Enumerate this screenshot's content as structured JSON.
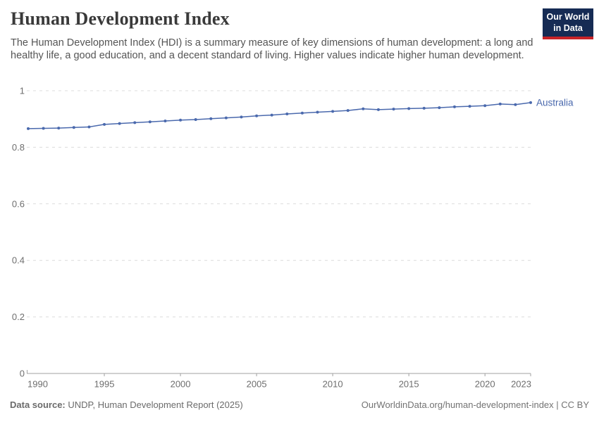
{
  "header": {
    "title": "Human Development Index",
    "subtitle": "The Human Development Index (HDI) is a summary measure of key dimensions of human development: a long and healthy life, a good education, and a decent standard of living. Higher values indicate higher human development.",
    "logo": {
      "line1": "Our World",
      "line2": "in Data"
    }
  },
  "colors": {
    "line": "#4a69ad",
    "logo_navy": "#162b54",
    "logo_red": "#c82328",
    "gridline": "#dcdcdc",
    "axis": "#a0a0a0",
    "tick_text": "#6e6e6e"
  },
  "chart_data": {
    "type": "line",
    "title": "Human Development Index",
    "entity": "Australia",
    "x": [
      1990,
      1991,
      1992,
      1993,
      1994,
      1995,
      1996,
      1997,
      1998,
      1999,
      2000,
      2001,
      2002,
      2003,
      2004,
      2005,
      2006,
      2007,
      2008,
      2009,
      2010,
      2011,
      2012,
      2013,
      2014,
      2015,
      2016,
      2017,
      2018,
      2019,
      2020,
      2021,
      2022,
      2023
    ],
    "series": [
      {
        "name": "Australia",
        "color": "#4a69ad",
        "values": [
          0.866,
          0.867,
          0.868,
          0.87,
          0.872,
          0.881,
          0.884,
          0.887,
          0.89,
          0.893,
          0.896,
          0.898,
          0.901,
          0.904,
          0.907,
          0.911,
          0.914,
          0.918,
          0.921,
          0.924,
          0.927,
          0.93,
          0.936,
          0.933,
          0.935,
          0.937,
          0.938,
          0.94,
          0.943,
          0.945,
          0.947,
          0.953,
          0.951,
          0.958
        ]
      }
    ],
    "x_ticks": [
      1990,
      1995,
      2000,
      2005,
      2010,
      2015,
      2020,
      2023
    ],
    "y_ticks": [
      0,
      0.2,
      0.4,
      0.6,
      0.8,
      1
    ],
    "xlim": [
      1990,
      2023
    ],
    "ylim": [
      0,
      1
    ],
    "grid": "horizontal-dashed",
    "legend": "end-of-line-label"
  },
  "footer": {
    "datasource_label": "Data source:",
    "datasource_text": " UNDP, Human Development Report (2025)",
    "url": "OurWorldinData.org/human-development-index",
    "license_suffix": " | CC BY"
  }
}
